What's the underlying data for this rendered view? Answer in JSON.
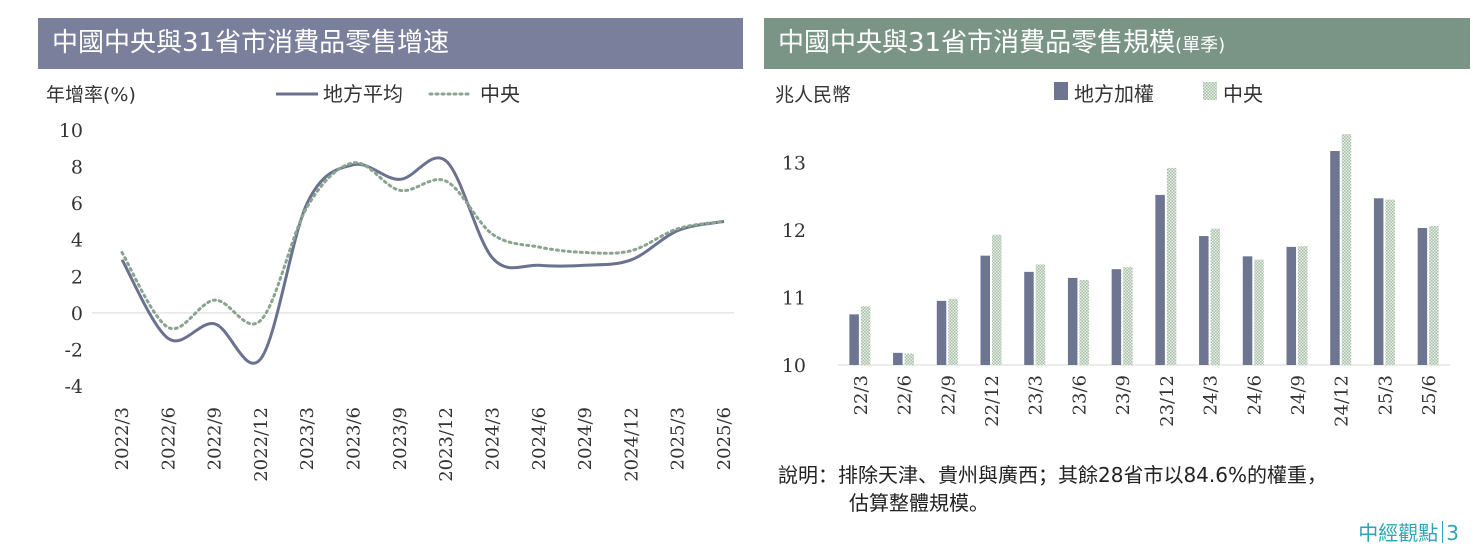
{
  "colors": {
    "left_title_bg": "#7a809c",
    "right_title_bg": "#7a9586",
    "series_local": "#6b7290",
    "series_central": "#8aa490",
    "bar_local": "#6e7590",
    "bar_central": "#a8bfa8",
    "brand": "#2aa6b5"
  },
  "left_chart": {
    "title": "中國中央與31省市消費品零售增速",
    "ylabel": "年增率(%)"
  },
  "right_chart": {
    "title": "中國中央與31省市消費品零售規模",
    "title_suffix": "(單季)",
    "ylabel": "兆人民幣"
  },
  "note": {
    "line1": "說明：排除天津、貴州與廣西；其餘28省市以84.6%的權重，",
    "line2": "估算整體規模。"
  },
  "footer": {
    "brand": "中經觀點",
    "page": "3"
  },
  "chart_data": [
    {
      "type": "line",
      "title": "中國中央與31省市消費品零售增速",
      "ylabel": "年增率(%)",
      "ylim": [
        -4,
        10
      ],
      "yticks": [
        "10",
        "8",
        "6",
        "4",
        "2",
        "0",
        "-2",
        "-4"
      ],
      "legend_position": "top",
      "x": [
        "2022/3",
        "2022/6",
        "2022/9",
        "2022/12",
        "2023/3",
        "2023/6",
        "2023/9",
        "2023/12",
        "2024/3",
        "2024/6",
        "2024/9",
        "2024/12",
        "2025/3",
        "2025/6"
      ],
      "series": [
        {
          "name": "地方平均",
          "style": "solid",
          "values": [
            2.9,
            -1.4,
            -0.6,
            -2.5,
            6.0,
            8.1,
            7.3,
            8.3,
            3.0,
            2.6,
            2.6,
            2.9,
            4.5,
            5.0
          ]
        },
        {
          "name": "中央",
          "style": "dotted",
          "values": [
            3.3,
            -0.8,
            0.7,
            -0.4,
            5.8,
            8.2,
            6.7,
            7.2,
            4.3,
            3.6,
            3.3,
            3.4,
            4.6,
            5.0
          ]
        }
      ]
    },
    {
      "type": "bar",
      "title": "中國中央與31省市消費品零售規模(單季)",
      "ylabel": "兆人民幣",
      "ylim": [
        10,
        13.5
      ],
      "yticks": [
        "13",
        "12",
        "11",
        "10"
      ],
      "legend_position": "top",
      "categories": [
        "22/3",
        "22/6",
        "22/9",
        "22/12",
        "23/3",
        "23/6",
        "23/9",
        "23/12",
        "24/3",
        "24/6",
        "24/9",
        "24/12",
        "25/3",
        "25/6"
      ],
      "series": [
        {
          "name": "地方加權",
          "values": [
            10.75,
            10.18,
            10.95,
            11.62,
            11.38,
            11.29,
            11.42,
            12.52,
            11.91,
            11.61,
            11.75,
            13.17,
            12.47,
            12.03
          ]
        },
        {
          "name": "中央",
          "values": [
            10.87,
            10.17,
            10.98,
            11.93,
            11.49,
            11.26,
            11.45,
            12.92,
            12.02,
            11.56,
            11.76,
            13.42,
            12.45,
            12.06
          ]
        }
      ]
    }
  ]
}
